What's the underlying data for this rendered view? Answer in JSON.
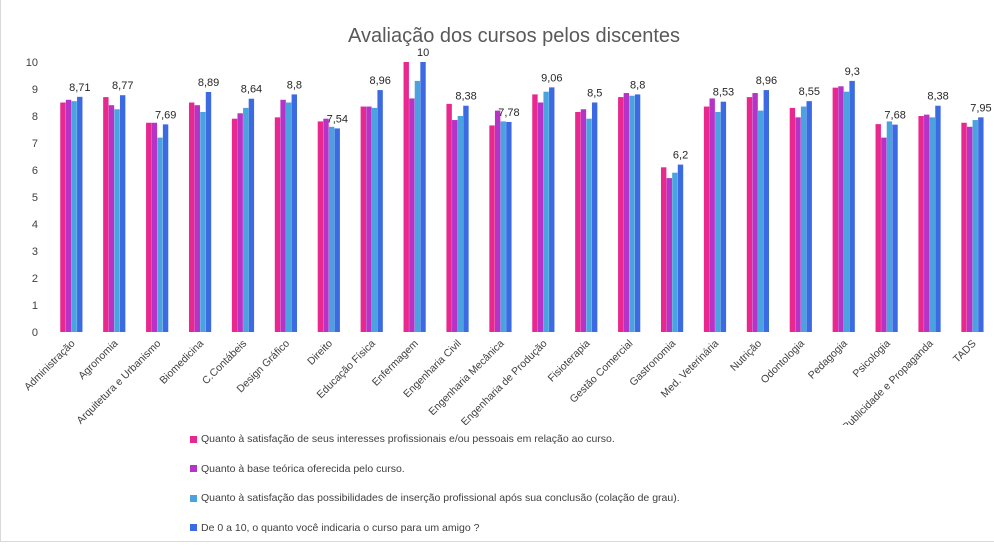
{
  "colors": {
    "series": [
      "#e8288f",
      "#b633c8",
      "#4aa3df",
      "#3b6ae3"
    ]
  },
  "chart_data": {
    "type": "bar",
    "title": "Avaliação dos cursos pelos discentes",
    "xlabel": "",
    "ylabel": "",
    "ylim": [
      0,
      10
    ],
    "yticks": [
      "0",
      "1",
      "2",
      "3",
      "4",
      "5",
      "6",
      "7",
      "8",
      "9",
      "10"
    ],
    "grid": false,
    "legend_position": "bottom",
    "categories": [
      "Administração",
      "Agronomia",
      "Arquitetura e Urbanismo",
      "Biomedicina",
      "C.Contábeis",
      "Design Gráfico",
      "Direito",
      "Educação Física",
      "Enfermagem",
      "Engenharia Civil",
      "Engenharia Mecânica",
      "Engenharia de Produção",
      "Fisioterapia",
      "Gestão Comercial",
      "Gastronomia",
      "Med. Veterinária",
      "Nutrição",
      "Odontologia",
      "Pedagogia",
      "Psicologia",
      "Publicidade e Propaganda",
      "TADS"
    ],
    "series": [
      {
        "name": "Quanto à satisfação de seus interesses profissionais e/ou pessoais em relação ao curso.",
        "values": [
          8.5,
          8.7,
          7.75,
          8.5,
          7.9,
          7.95,
          7.8,
          8.35,
          10,
          8.45,
          7.65,
          8.8,
          8.15,
          8.7,
          6.1,
          8.35,
          8.7,
          8.3,
          9.05,
          7.7,
          8.0,
          7.75
        ]
      },
      {
        "name": "Quanto à base teórica oferecida pelo curso.",
        "values": [
          8.6,
          8.4,
          7.75,
          8.4,
          8.1,
          8.6,
          7.9,
          8.35,
          8.65,
          7.85,
          8.2,
          8.5,
          8.25,
          8.85,
          5.7,
          8.65,
          8.85,
          7.95,
          9.1,
          7.2,
          8.05,
          7.6
        ]
      },
      {
        "name": "Quanto à satisfação das possibilidades de inserção profissional após sua conclusão (colação de grau).",
        "values": [
          8.55,
          8.25,
          7.2,
          8.15,
          8.3,
          8.5,
          7.6,
          8.3,
          9.3,
          8.0,
          7.8,
          8.9,
          7.9,
          8.75,
          5.9,
          8.15,
          8.2,
          8.35,
          8.9,
          7.8,
          7.95,
          7.85
        ]
      },
      {
        "name": "De 0 a 10, o quanto você indicaria o curso para um amigo ?",
        "values": [
          8.71,
          8.77,
          7.69,
          8.89,
          8.64,
          8.8,
          7.54,
          8.96,
          10,
          8.38,
          7.78,
          9.06,
          8.5,
          8.8,
          6.2,
          8.53,
          8.96,
          8.55,
          9.3,
          7.68,
          8.38,
          7.95
        ]
      }
    ],
    "data_labels": [
      "8,71",
      "8,77",
      "7,69",
      "8,89",
      "8,64",
      "8,8",
      "7,54",
      "8,96",
      "10",
      "8,38",
      "7,78",
      "9,06",
      "8,5",
      "8,8",
      "6,2",
      "8,53",
      "8,96",
      "8,55",
      "9,3",
      "7,68",
      "8,38",
      "7,95"
    ]
  }
}
